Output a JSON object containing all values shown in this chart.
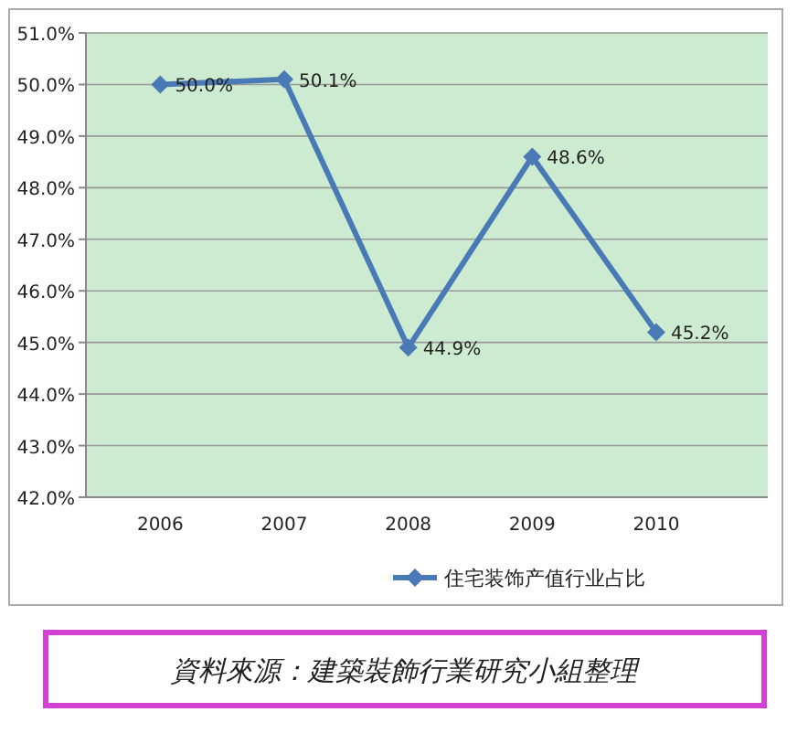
{
  "chart_data": {
    "type": "line",
    "categories": [
      "2006",
      "2007",
      "2008",
      "2009",
      "2010"
    ],
    "series": [
      {
        "name": "住宅装饰产值行业占比",
        "color": "#4a7ab5",
        "values": [
          50.0,
          50.1,
          44.9,
          48.6,
          45.2
        ],
        "value_labels": [
          "50.0%",
          "50.1%",
          "44.9%",
          "48.6%",
          "45.2%"
        ]
      }
    ],
    "ylim": [
      42,
      51
    ],
    "yticks": [
      {
        "value": 42,
        "label": "42.0%"
      },
      {
        "value": 43,
        "label": "43.0%"
      },
      {
        "value": 44,
        "label": "44.0%"
      },
      {
        "value": 45,
        "label": "45.0%"
      },
      {
        "value": 46,
        "label": "46.0%"
      },
      {
        "value": 47,
        "label": "47.0%"
      },
      {
        "value": 48,
        "label": "48.0%"
      },
      {
        "value": 49,
        "label": "49.0%"
      },
      {
        "value": 50,
        "label": "50.0%"
      },
      {
        "value": 51,
        "label": "51.0%"
      }
    ],
    "grid": "y",
    "legend": "bottom",
    "marker": "diamond",
    "line_style": "solid",
    "annotations": [
      "資料來源：建築裝飾行業研究小組整理"
    ]
  }
}
